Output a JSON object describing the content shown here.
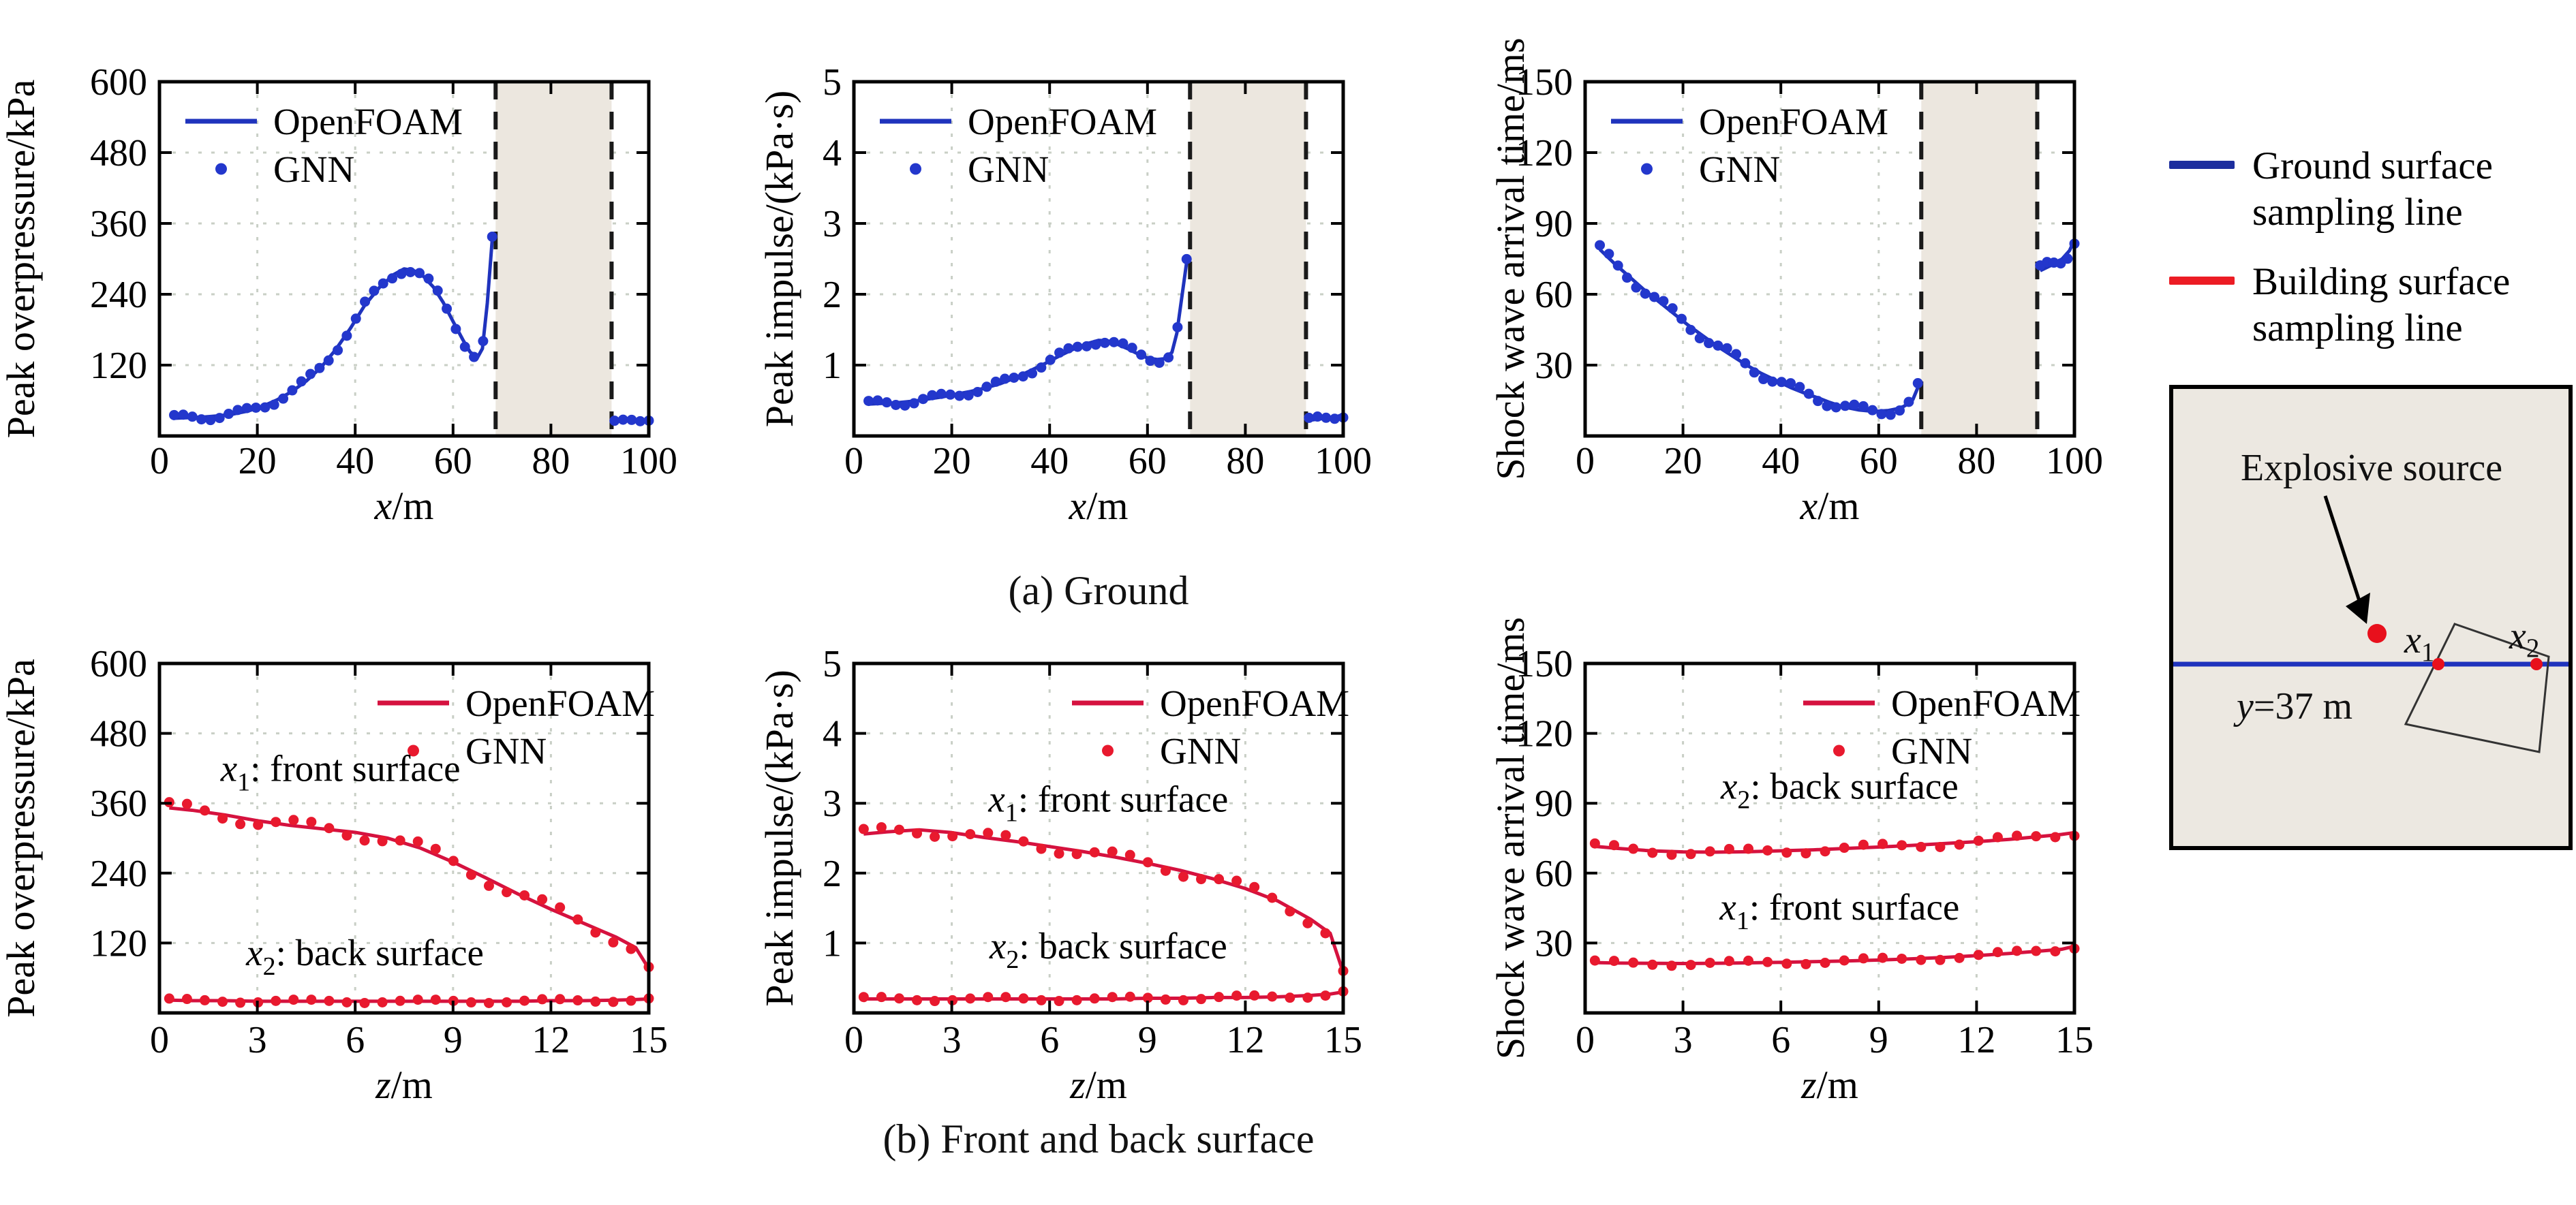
{
  "figure": {
    "caption_a": "(a) Ground",
    "caption_b": "(b) Front and back surface"
  },
  "right_legend": {
    "items": [
      {
        "name": "ground-surface-sampling-line",
        "color": "#1d2e9e",
        "line1": "Ground surface",
        "line2": "sampling line"
      },
      {
        "name": "building-surface-sampling-line",
        "color": "#ec1c24",
        "line1": "Building surface",
        "line2": "sampling line"
      }
    ]
  },
  "schematic": {
    "explosive_label": "Explosive source",
    "y_line_var": "y",
    "y_line_rest": "=37 m",
    "x1": {
      "var": "x",
      "sub": "1"
    },
    "x2": {
      "var": "x",
      "sub": "2"
    },
    "box_fill": "#ece8e1",
    "line_color": "#1f33bd",
    "dot_color": "#e8101c"
  },
  "colors": {
    "blue_line": "#1f33bd",
    "blue_dot": "#2337cc",
    "red_line": "#d5123f",
    "red_dot": "#e8192e",
    "grid": "#c9cfc6",
    "shaded": "#ece7df",
    "dash": "#1a1a1a",
    "axis": "#000000"
  },
  "chart_data": [
    {
      "id": "ground-overpressure",
      "type": "line",
      "ylabel": "Peak overpressure/kPa",
      "xlabel_var": "x",
      "xlabel_unit": "/m",
      "xlim": [
        0,
        100
      ],
      "ylim": [
        0,
        600
      ],
      "xticks": [
        0,
        20,
        40,
        60,
        80,
        100
      ],
      "yticks": [
        120,
        240,
        360,
        480,
        600
      ],
      "legend": {
        "line": "OpenFOAM",
        "dots": "GNN"
      },
      "legend_pos": "left",
      "color": "blue",
      "shaded_region": {
        "from": 68.7,
        "to": 92.4
      },
      "series": [
        {
          "name": "ground",
          "segments": [
            {
              "x": [
                3,
                6,
                9,
                12,
                15,
                18,
                21,
                24,
                27,
                30,
                33,
                36,
                39,
                42,
                45,
                48,
                50,
                52,
                54,
                56,
                58,
                60,
                62,
                63.5,
                65,
                66,
                67,
                68
              ],
              "y": [
                30,
                31,
                32,
                34,
                37,
                42,
                50,
                61,
                75,
                93,
                116,
                146,
                182,
                222,
                252,
                274,
                283,
                280,
                270,
                252,
                226,
                194,
                163,
                142,
                133,
                148,
                225,
                332
              ],
              "dots": {
                "n": 36,
                "amp": 6
              }
            },
            {
              "x": [
                93,
                95,
                97,
                98.5,
                100
              ],
              "y": [
                24,
                26,
                27,
                26,
                28
              ],
              "dots": {
                "n": 5,
                "amp": 2
              }
            }
          ]
        }
      ],
      "annotations": []
    },
    {
      "id": "ground-impulse",
      "type": "line",
      "ylabel": "Peak impulse/(kPa·s)",
      "xlabel_var": "x",
      "xlabel_unit": "/m",
      "xlim": [
        0,
        100
      ],
      "ylim": [
        0,
        5
      ],
      "xticks": [
        0,
        20,
        40,
        60,
        80,
        100
      ],
      "yticks": [
        1,
        2,
        3,
        4,
        5
      ],
      "legend": {
        "line": "OpenFOAM",
        "dots": "GNN"
      },
      "legend_pos": "left",
      "color": "blue",
      "shaded_region": {
        "from": 68.7,
        "to": 92.4
      },
      "series": [
        {
          "name": "ground",
          "segments": [
            {
              "x": [
                3,
                6,
                9,
                12,
                15,
                18,
                21,
                24,
                27,
                30,
                33,
                36,
                39,
                42,
                45,
                48,
                50,
                52,
                54,
                56,
                58,
                60,
                62,
                63.5,
                65,
                66,
                67,
                68
              ],
              "y": [
                0.45,
                0.46,
                0.47,
                0.49,
                0.52,
                0.55,
                0.59,
                0.63,
                0.68,
                0.74,
                0.82,
                0.92,
                1.02,
                1.13,
                1.23,
                1.31,
                1.35,
                1.34,
                1.29,
                1.23,
                1.16,
                1.1,
                1.08,
                1.09,
                1.18,
                1.45,
                1.95,
                2.45
              ],
              "dots": {
                "n": 36,
                "amp": 0.05
              }
            },
            {
              "x": [
                93,
                95,
                97,
                98.5,
                100
              ],
              "y": [
                0.22,
                0.24,
                0.25,
                0.27,
                0.3
              ],
              "dots": {
                "n": 5,
                "amp": 0.04
              }
            }
          ]
        }
      ],
      "annotations": []
    },
    {
      "id": "ground-arrival",
      "type": "line",
      "ylabel": "Shock wave arrival time/ms",
      "xlabel_var": "x",
      "xlabel_unit": "/m",
      "xlim": [
        0,
        100
      ],
      "ylim": [
        0,
        150
      ],
      "xticks": [
        0,
        20,
        40,
        60,
        80,
        100
      ],
      "yticks": [
        30,
        60,
        90,
        120,
        150
      ],
      "legend": {
        "line": "OpenFOAM",
        "dots": "GNN"
      },
      "legend_pos": "left",
      "color": "blue",
      "shaded_region": {
        "from": 68.7,
        "to": 92.4
      },
      "series": [
        {
          "name": "ground",
          "segments": [
            {
              "x": [
                3,
                6,
                9,
                12,
                15,
                18,
                21,
                24,
                27,
                30,
                33,
                36,
                39,
                42,
                45,
                48,
                50,
                52,
                54,
                56,
                58,
                60,
                62,
                63.5,
                65,
                66,
                67,
                68
              ],
              "y": [
                79,
                73,
                67.5,
                62,
                57,
                52,
                47,
                42.5,
                38,
                34,
                30,
                26.5,
                23.5,
                20.5,
                18,
                15.8,
                14.2,
                12.8,
                11.8,
                11.0,
                10.6,
                10.5,
                10.8,
                11.4,
                12.4,
                13.6,
                15.5,
                20.5
              ],
              "dots": {
                "n": 36,
                "amp": 2
              }
            },
            {
              "x": [
                93,
                94.5,
                96,
                97.5,
                99,
                100
              ],
              "y": [
                70,
                71.5,
                73,
                75,
                78.5,
                83
              ],
              "dots": {
                "n": 6,
                "amp": 2.5
              }
            }
          ]
        }
      ],
      "annotations": []
    },
    {
      "id": "surface-overpressure",
      "type": "line",
      "ylabel": "Peak overpressure/kPa",
      "xlabel_var": "z",
      "xlabel_unit": "/m",
      "xlim": [
        0,
        15
      ],
      "ylim": [
        0,
        600
      ],
      "xticks": [
        0,
        3,
        6,
        9,
        12,
        15
      ],
      "yticks": [
        120,
        240,
        360,
        480,
        600
      ],
      "legend": {
        "line": "OpenFOAM",
        "dots": "GNN"
      },
      "legend_pos": "right",
      "color": "red",
      "shaded_region": null,
      "series": [
        {
          "name": "front",
          "segments": [
            {
              "x": [
                0.3,
                1,
                2,
                3,
                4,
                5,
                6,
                7,
                8,
                9,
                10,
                11,
                12,
                13,
                14,
                14.6,
                15
              ],
              "y": [
                352,
                348,
                340,
                330,
                322,
                316,
                310,
                300,
                283,
                259,
                232,
                204,
                178,
                154,
                130,
                112,
                76
              ],
              "dots": {
                "n": 28,
                "amp": 11
              }
            }
          ]
        },
        {
          "name": "back",
          "segments": [
            {
              "x": [
                0.3,
                1,
                2,
                3,
                4,
                5,
                6,
                7,
                8,
                9,
                10,
                11,
                12,
                13,
                14,
                14.6,
                15
              ],
              "y": [
                22,
                21,
                21,
                20,
                20,
                20,
                20,
                20,
                20,
                20,
                20,
                20,
                21,
                21,
                22,
                23,
                24
              ],
              "dots": {
                "n": 28,
                "amp": 3
              }
            }
          ]
        }
      ],
      "annotations": [
        {
          "var": "x",
          "sub": "1",
          "rest": ": front surface",
          "fx": 0.37,
          "value": 398
        },
        {
          "var": "x",
          "sub": "2",
          "rest": ": back surface",
          "fx": 0.42,
          "value": 82
        }
      ]
    },
    {
      "id": "surface-impulse",
      "type": "line",
      "ylabel": "Peak impulse/(kPa·s)",
      "xlabel_var": "z",
      "xlabel_unit": "/m",
      "xlim": [
        0,
        15
      ],
      "ylim": [
        0,
        5
      ],
      "xticks": [
        0,
        3,
        6,
        9,
        12,
        15
      ],
      "yticks": [
        1,
        2,
        3,
        4,
        5
      ],
      "legend": {
        "line": "OpenFOAM",
        "dots": "GNN"
      },
      "legend_pos": "right",
      "color": "red",
      "shaded_region": null,
      "series": [
        {
          "name": "front",
          "segments": [
            {
              "x": [
                0.3,
                1,
                2,
                3,
                4,
                5,
                6,
                7,
                8,
                9,
                10,
                11,
                12,
                13,
                14,
                14.6,
                15
              ],
              "y": [
                2.56,
                2.59,
                2.62,
                2.58,
                2.51,
                2.45,
                2.38,
                2.31,
                2.23,
                2.14,
                2.04,
                1.92,
                1.78,
                1.6,
                1.34,
                1.14,
                0.58
              ],
              "dots": {
                "n": 28,
                "amp": 0.08
              }
            }
          ]
        },
        {
          "name": "back",
          "segments": [
            {
              "x": [
                0.3,
                1,
                2,
                3,
                4,
                5,
                6,
                7,
                8,
                9,
                10,
                11,
                12,
                13,
                14,
                14.6,
                15
              ],
              "y": [
                0.2,
                0.2,
                0.2,
                0.2,
                0.2,
                0.2,
                0.2,
                0.2,
                0.2,
                0.21,
                0.21,
                0.22,
                0.22,
                0.23,
                0.25,
                0.27,
                0.3
              ],
              "dots": {
                "n": 28,
                "amp": 0.03
              }
            }
          ]
        }
      ],
      "annotations": [
        {
          "var": "x",
          "sub": "1",
          "rest": ": front surface",
          "fx": 0.52,
          "value": 2.88
        },
        {
          "var": "x",
          "sub": "2",
          "rest": ": back surface",
          "fx": 0.52,
          "value": 0.78
        }
      ]
    },
    {
      "id": "surface-arrival",
      "type": "line",
      "ylabel": "Shock wave arrival time/ms",
      "xlabel_var": "z",
      "xlabel_unit": "/m",
      "xlim": [
        0,
        15
      ],
      "ylim": [
        0,
        150
      ],
      "xticks": [
        0,
        3,
        6,
        9,
        12,
        15
      ],
      "yticks": [
        30,
        60,
        90,
        120,
        150
      ],
      "legend": {
        "line": "OpenFOAM",
        "dots": "GNN"
      },
      "legend_pos": "right",
      "color": "red",
      "shaded_region": null,
      "series": [
        {
          "name": "back",
          "segments": [
            {
              "x": [
                0.3,
                1,
                2,
                3,
                4,
                5,
                6,
                7,
                8,
                9,
                10,
                11,
                12,
                13,
                14,
                14.6,
                15
              ],
              "y": [
                71.5,
                70.6,
                69.6,
                69.1,
                69.0,
                69.2,
                69.6,
                70.0,
                70.6,
                71.2,
                71.9,
                72.7,
                73.5,
                74.5,
                75.8,
                76.6,
                77.4
              ],
              "dots": {
                "n": 26,
                "amp": 1.4
              }
            }
          ]
        },
        {
          "name": "front",
          "segments": [
            {
              "x": [
                0.3,
                1,
                2,
                3,
                4,
                5,
                6,
                7,
                8,
                9,
                10,
                11,
                12,
                13,
                14,
                14.6,
                15
              ],
              "y": [
                21.6,
                21.4,
                21.3,
                21.2,
                21.3,
                21.5,
                21.7,
                22.0,
                22.3,
                22.7,
                23.2,
                23.8,
                24.6,
                25.5,
                26.6,
                27.3,
                28.6
              ],
              "dots": {
                "n": 26,
                "amp": 1.0
              }
            }
          ]
        }
      ],
      "annotations": [
        {
          "var": "x",
          "sub": "2",
          "rest": ": back surface",
          "fx": 0.52,
          "value": 92
        },
        {
          "var": "x",
          "sub": "1",
          "rest": ": front surface",
          "fx": 0.52,
          "value": 40
        }
      ]
    }
  ]
}
